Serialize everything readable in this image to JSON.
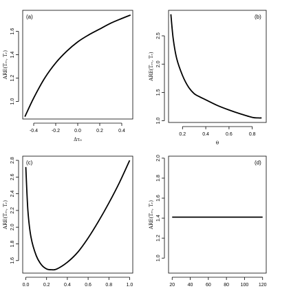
{
  "chart_data": [
    {
      "type": "line",
      "panel_label": "(a)",
      "xlabel": "Δτ₀",
      "ylabel": "ARE(Tᵣᵥ, Tᵣ)",
      "xlim": [
        -0.5,
        0.5
      ],
      "ylim": [
        0.85,
        1.78
      ],
      "xticks": [
        -0.4,
        -0.2,
        0.0,
        0.2,
        0.4
      ],
      "xtick_labels": [
        "-0.4",
        "-0.2",
        "0.0",
        "0.2",
        "0.4"
      ],
      "yticks": [
        1.0,
        1.2,
        1.4,
        1.6
      ],
      "ytick_labels": [
        "1.0",
        "1.2",
        "1.4",
        "1.6"
      ],
      "series": [
        {
          "x": [
            -0.48,
            -0.4,
            -0.3,
            -0.2,
            -0.1,
            0.0,
            0.1,
            0.2,
            0.3,
            0.4,
            0.48
          ],
          "y": [
            0.87,
            1.03,
            1.2,
            1.33,
            1.43,
            1.51,
            1.57,
            1.62,
            1.67,
            1.71,
            1.74
          ]
        }
      ]
    },
    {
      "type": "line",
      "panel_label": "(b)",
      "xlabel": "θ",
      "ylabel": "ARE(Tᵣᵥ, Tᵣ)",
      "xlim": [
        0.08,
        0.92
      ],
      "ylim": [
        0.97,
        2.95
      ],
      "xticks": [
        0.2,
        0.4,
        0.6,
        0.8
      ],
      "xtick_labels": [
        "0.2",
        "0.4",
        "0.6",
        "0.8"
      ],
      "yticks": [
        1.0,
        1.5,
        2.0,
        2.5
      ],
      "ytick_labels": [
        "1.0",
        "1.5",
        "2.0",
        "2.5"
      ],
      "series": [
        {
          "x": [
            0.1,
            0.12,
            0.15,
            0.2,
            0.25,
            0.3,
            0.35,
            0.4,
            0.5,
            0.6,
            0.7,
            0.8,
            0.85,
            0.88
          ],
          "y": [
            2.88,
            2.45,
            2.1,
            1.8,
            1.6,
            1.48,
            1.42,
            1.37,
            1.27,
            1.19,
            1.12,
            1.06,
            1.05,
            1.05
          ]
        }
      ]
    },
    {
      "type": "line",
      "panel_label": "(c)",
      "xlabel": "Δθ",
      "ylabel": "ARE(Tᵣᵥ, Tᵣ)",
      "xlim": [
        -0.03,
        1.03
      ],
      "ylim": [
        1.45,
        2.85
      ],
      "xticks": [
        0.0,
        0.2,
        0.4,
        0.6,
        0.8,
        1.0
      ],
      "xtick_labels": [
        "0.0",
        "0.2",
        "0.4",
        "0.6",
        "0.8",
        "1.0"
      ],
      "yticks": [
        1.6,
        1.8,
        2.0,
        2.2,
        2.4,
        2.6,
        2.8
      ],
      "ytick_labels": [
        "1.6",
        "1.8",
        "2.0",
        "2.2",
        "2.4",
        "2.6",
        "2.8"
      ],
      "series": [
        {
          "x": [
            0.0,
            0.02,
            0.05,
            0.1,
            0.15,
            0.2,
            0.25,
            0.3,
            0.4,
            0.5,
            0.6,
            0.7,
            0.8,
            0.9,
            1.0
          ],
          "y": [
            2.72,
            2.2,
            1.88,
            1.66,
            1.55,
            1.5,
            1.49,
            1.5,
            1.58,
            1.7,
            1.87,
            2.07,
            2.29,
            2.53,
            2.8
          ]
        }
      ]
    },
    {
      "type": "line",
      "panel_label": "(d)",
      "xlabel": "N₁",
      "ylabel": "ARE(Tᵣᵥ, Tᵣ)",
      "xlim": [
        16,
        124
      ],
      "ylim": [
        0.85,
        2.02
      ],
      "xticks": [
        20,
        40,
        60,
        80,
        100,
        120
      ],
      "xtick_labels": [
        "20",
        "40",
        "60",
        "80",
        "100",
        "120"
      ],
      "yticks": [
        1.0,
        1.2,
        1.4,
        1.6,
        1.8,
        2.0
      ],
      "ytick_labels": [
        "1.0",
        "1.2",
        "1.4",
        "1.6",
        "1.8",
        "2.0"
      ],
      "series": [
        {
          "x": [
            20,
            120
          ],
          "y": [
            1.41,
            1.41
          ]
        }
      ]
    }
  ]
}
